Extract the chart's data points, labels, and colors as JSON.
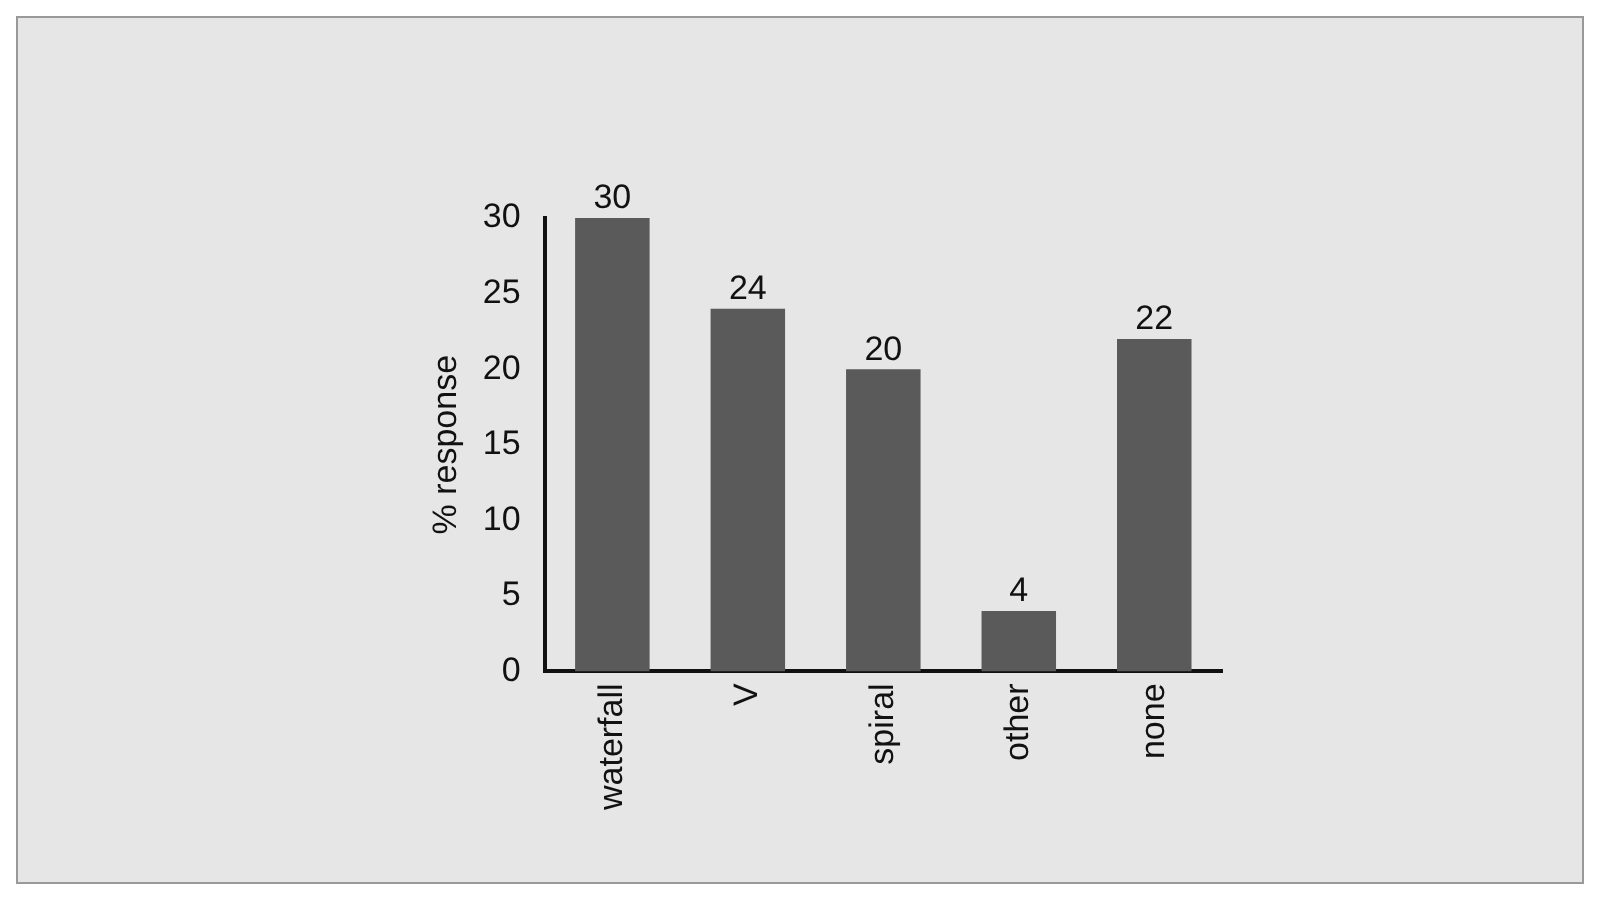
{
  "chart_data": {
    "type": "bar",
    "ylabel": "% response",
    "categories": [
      "waterfall",
      "V",
      "spiral",
      "other",
      "none"
    ],
    "values": [
      30,
      24,
      20,
      4,
      22
    ],
    "color": "#5a5a5a",
    "ylim": [
      0,
      30
    ],
    "yticks": [
      0,
      5,
      10,
      15,
      20,
      25,
      30
    ],
    "data_labels": true,
    "grid": false,
    "legend": false
  }
}
